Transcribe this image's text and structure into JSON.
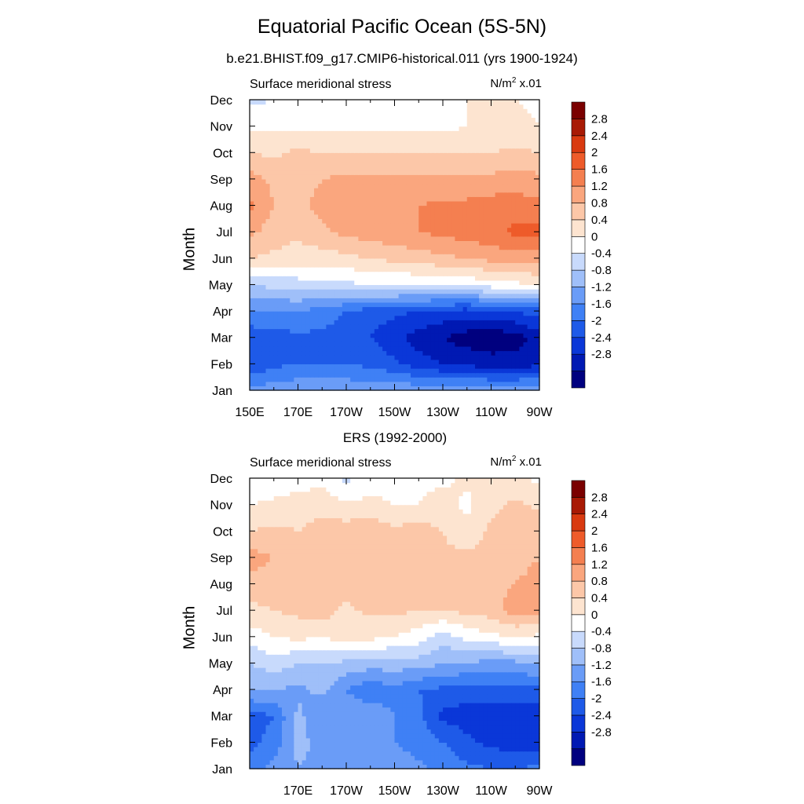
{
  "title": "Equatorial Pacific Ocean (5S-5N)",
  "subtitle": "b.e21.BHIST.f09_g17.CMIP6-historical.011 (yrs 1900-1924)",
  "chart_data": [
    {
      "type": "heatmap",
      "title": "",
      "variable": "Surface meridional stress",
      "units": "N/m",
      "units_sup": "2",
      "units_scale": "x.01",
      "ylabel": "Month",
      "xlabel": "",
      "y_ticks": [
        "Jan",
        "Feb",
        "Mar",
        "Apr",
        "May",
        "Jun",
        "Jul",
        "Aug",
        "Sep",
        "Oct",
        "Nov",
        "Dec"
      ],
      "x_ticks": [
        "150E",
        "170E",
        "170W",
        "150W",
        "130W",
        "110W",
        "90W"
      ],
      "x_range": [
        "150E",
        "90W"
      ],
      "colorbar_labels": [
        "2.8",
        "2.4",
        "2",
        "1.6",
        "1.2",
        "0.8",
        "0.4",
        "0",
        "-0.4",
        "-0.8",
        "-1.2",
        "-1.6",
        "-2",
        "-2.4",
        "-2.8"
      ],
      "lon": [
        150,
        160,
        170,
        180,
        190,
        200,
        210,
        220,
        230,
        240,
        250,
        260,
        270
      ],
      "values": [
        [
          -1.0,
          -1.0,
          -0.9,
          -0.9,
          -0.9,
          -0.9,
          -0.9,
          -0.9,
          -0.9,
          -0.9,
          -0.9,
          -0.9,
          -0.9
        ],
        [
          -2.0,
          -1.7,
          -1.6,
          -1.6,
          -1.6,
          -1.7,
          -1.9,
          -2.2,
          -2.4,
          -2.5,
          -2.6,
          -2.6,
          -2.5
        ],
        [
          -1.9,
          -1.8,
          -1.7,
          -1.7,
          -1.8,
          -2.0,
          -2.3,
          -2.6,
          -2.8,
          -3.0,
          -3.1,
          -3.0,
          -2.6
        ],
        [
          -1.2,
          -1.2,
          -1.2,
          -1.4,
          -1.6,
          -1.8,
          -1.9,
          -2.0,
          -2.1,
          -2.2,
          -2.1,
          -2.0,
          -1.8
        ],
        [
          -0.4,
          -0.3,
          -0.2,
          -0.1,
          -0.1,
          0.0,
          0.0,
          0.0,
          0.0,
          0.1,
          0.2,
          0.3,
          0.4
        ],
        [
          0.8,
          0.7,
          0.6,
          0.6,
          0.7,
          0.8,
          0.9,
          1.0,
          1.1,
          1.2,
          1.3,
          1.4,
          1.4
        ],
        [
          1.3,
          1.0,
          0.9,
          1.1,
          1.3,
          1.4,
          1.5,
          1.6,
          1.7,
          1.8,
          1.9,
          2.1,
          2.2
        ],
        [
          1.7,
          1.2,
          1.1,
          1.3,
          1.5,
          1.6,
          1.6,
          1.6,
          1.7,
          1.7,
          1.8,
          1.8,
          1.7
        ],
        [
          1.4,
          1.1,
          1.1,
          1.2,
          1.3,
          1.3,
          1.3,
          1.3,
          1.3,
          1.3,
          1.3,
          1.4,
          1.3
        ],
        [
          0.8,
          0.7,
          0.9,
          0.8,
          0.8,
          0.8,
          0.8,
          0.8,
          0.8,
          0.8,
          0.8,
          0.9,
          0.8
        ],
        [
          0.3,
          0.3,
          0.3,
          0.3,
          0.3,
          0.3,
          0.3,
          0.3,
          0.3,
          0.4,
          0.5,
          0.5,
          0.4
        ],
        [
          -0.1,
          0.0,
          0.0,
          0.1,
          0.1,
          0.2,
          0.2,
          0.2,
          0.2,
          0.4,
          0.5,
          0.4,
          0.3
        ]
      ]
    },
    {
      "type": "heatmap",
      "title": "ERS (1992-2000)",
      "variable": "Surface meridional stress",
      "units": "N/m",
      "units_sup": "2",
      "units_scale": "x.01",
      "ylabel": "Month",
      "xlabel": "",
      "y_ticks": [
        "Jan",
        "Feb",
        "Mar",
        "Apr",
        "May",
        "Jun",
        "Jul",
        "Aug",
        "Sep",
        "Oct",
        "Nov",
        "Dec"
      ],
      "x_ticks": [
        "170E",
        "170W",
        "150W",
        "130W",
        "110W",
        "90W"
      ],
      "x_range": [
        "150E",
        "90W"
      ],
      "colorbar_labels": [
        "2.8",
        "2.4",
        "2",
        "1.6",
        "1.2",
        "0.8",
        "0.4",
        "0",
        "-0.4",
        "-0.8",
        "-1.2",
        "-1.6",
        "-2",
        "-2.4",
        "-2.8"
      ],
      "lon": [
        150,
        160,
        170,
        180,
        190,
        200,
        210,
        220,
        230,
        240,
        250,
        260,
        270
      ],
      "values": [
        [
          -1.3,
          -1.1,
          -0.8,
          -0.9,
          -0.9,
          -0.8,
          -0.9,
          -1.1,
          -1.3,
          -1.5,
          -1.6,
          -1.6,
          -1.5
        ],
        [
          -1.8,
          -1.4,
          -0.7,
          -0.9,
          -0.9,
          -0.8,
          -1.2,
          -1.4,
          -1.6,
          -1.9,
          -2.1,
          -2.2,
          -2.2
        ],
        [
          -1.8,
          -1.6,
          -0.7,
          -1.1,
          -1.0,
          -0.9,
          -1.2,
          -1.5,
          -2.1,
          -2.2,
          -2.3,
          -2.4,
          -2.3
        ],
        [
          -0.8,
          -0.8,
          -0.9,
          -0.7,
          -1.2,
          -1.5,
          -1.3,
          -1.6,
          -1.7,
          -1.8,
          -1.7,
          -1.7,
          -1.7
        ],
        [
          -0.4,
          -0.2,
          -0.4,
          -0.4,
          -0.5,
          -0.6,
          -0.6,
          -0.6,
          -0.8,
          -0.8,
          -1.0,
          -0.9,
          -0.8
        ],
        [
          0.2,
          0.4,
          0.5,
          0.4,
          0.6,
          0.5,
          0.4,
          0.2,
          -0.2,
          0.1,
          0.3,
          0.4,
          0.3
        ],
        [
          0.7,
          0.8,
          0.9,
          1.0,
          0.7,
          0.9,
          0.9,
          0.8,
          0.8,
          0.9,
          1.0,
          1.4,
          1.3
        ],
        [
          1.0,
          1.0,
          0.9,
          1.1,
          1.0,
          1.0,
          1.0,
          1.0,
          1.0,
          1.0,
          1.1,
          1.2,
          1.4
        ],
        [
          1.4,
          1.2,
          1.1,
          1.1,
          1.0,
          1.1,
          1.0,
          1.0,
          0.9,
          0.9,
          1.0,
          1.0,
          1.2
        ],
        [
          0.8,
          0.9,
          0.8,
          1.0,
          1.0,
          1.1,
          0.9,
          1.0,
          0.8,
          0.5,
          0.9,
          1.0,
          1.2
        ],
        [
          0.4,
          0.5,
          0.6,
          0.6,
          0.5,
          0.5,
          0.4,
          0.4,
          0.6,
          0.3,
          0.7,
          0.9,
          0.7
        ],
        [
          0.0,
          0.1,
          0.2,
          0.3,
          -0.1,
          0.2,
          0.3,
          0.3,
          0.3,
          0.5,
          0.4,
          0.5,
          0.3
        ]
      ]
    }
  ],
  "palette": {
    "levels": [
      -2.8,
      -2.4,
      -2.0,
      -1.6,
      -1.2,
      -0.8,
      -0.4,
      0.0,
      0.4,
      0.8,
      1.2,
      1.6,
      2.0,
      2.4,
      2.8
    ],
    "colors": [
      "#00007f",
      "#0019b3",
      "#0a37d8",
      "#1e5ae8",
      "#3f80f5",
      "#6a9cf7",
      "#9fbff9",
      "#c8dafc",
      "#ffffff",
      "#fde4d0",
      "#fcc7a8",
      "#faa67e",
      "#f47f50",
      "#ee5b2a",
      "#d93a10",
      "#a81a05",
      "#7a0000"
    ]
  }
}
